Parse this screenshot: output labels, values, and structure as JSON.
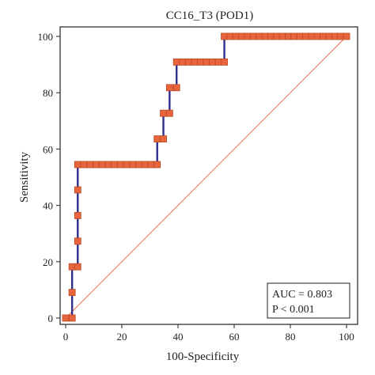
{
  "chart_data": {
    "type": "line",
    "title": "CC16_T3 (POD1)",
    "xlabel": "100-Specificity",
    "ylabel": "Sensitivity",
    "xlim": [
      0,
      100
    ],
    "ylim": [
      0,
      100
    ],
    "x_ticks": [
      0,
      20,
      40,
      60,
      80,
      100
    ],
    "y_ticks": [
      0,
      20,
      40,
      60,
      80,
      100
    ],
    "x_tick_labels": [
      "0",
      "20",
      "40",
      "60",
      "80",
      "100"
    ],
    "y_tick_labels": [
      "0",
      "20",
      "40",
      "60",
      "80",
      "100"
    ],
    "grid": false,
    "legend_position": "bottom-right",
    "annotation": {
      "auc": "AUC = 0.803",
      "p": "P < 0.001"
    },
    "series": [
      {
        "values": [
          [
            0,
            0
          ],
          [
            2.3,
            0
          ],
          [
            2.3,
            9.1
          ],
          [
            2.3,
            18.2
          ],
          [
            4.3,
            18.2
          ],
          [
            4.3,
            27.3
          ],
          [
            4.3,
            36.4
          ],
          [
            4.3,
            45.5
          ],
          [
            4.3,
            54.5
          ],
          [
            32.6,
            54.5
          ],
          [
            32.6,
            63.6
          ],
          [
            34.8,
            63.6
          ],
          [
            34.8,
            72.7
          ],
          [
            37,
            72.7
          ],
          [
            37,
            81.8
          ],
          [
            39.5,
            81.8
          ],
          [
            39.5,
            90.9
          ],
          [
            56.5,
            90.9
          ],
          [
            56.5,
            100
          ],
          [
            100,
            100
          ]
        ]
      },
      {
        "values": [
          [
            0,
            0
          ],
          [
            100,
            100
          ]
        ]
      }
    ],
    "colors": {
      "curve": "#2f2f8f",
      "marker_fill": "#e8643c",
      "marker_stroke": "#b84a24",
      "reference": "#e8643c",
      "axis": "#222222"
    }
  }
}
